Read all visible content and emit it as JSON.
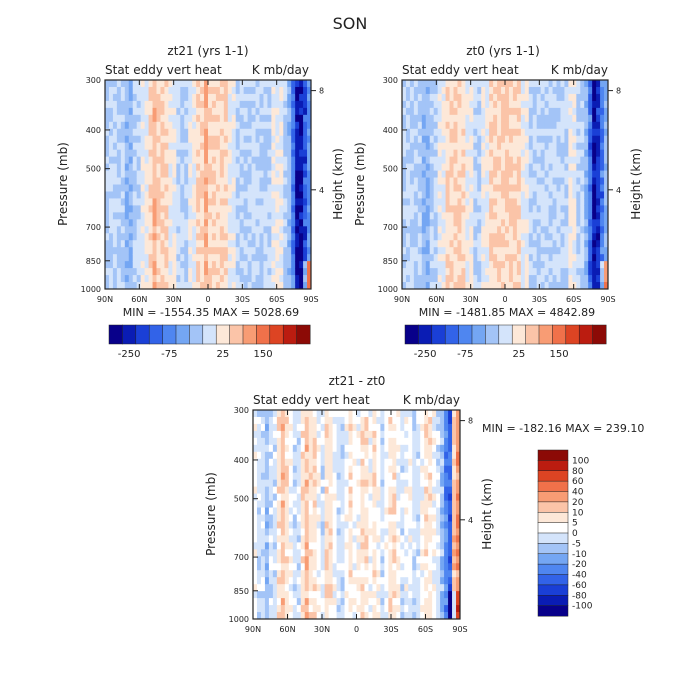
{
  "figure_title": "SON",
  "chart_data": [
    {
      "type": "heatmap",
      "id": "a",
      "title": "zt21 (yrs 1-1)",
      "left_label": "Stat eddy vert heat",
      "right_label": "K mb/day",
      "xlabel": "",
      "ylabel": "Pressure (mb)",
      "y2label": "Height (km)",
      "x_ticks": [
        "90N",
        "60N",
        "30N",
        "0",
        "30S",
        "60S",
        "90S"
      ],
      "y_ticks": [
        300,
        400,
        500,
        700,
        850,
        1000
      ],
      "y2_ticks": [
        8,
        4
      ],
      "ylim": [
        1000,
        300
      ],
      "stats": "MIN = -1554.35   MAX = 5028.69",
      "colorbar_ticks": [
        "-250",
        "-75",
        "25",
        "150"
      ],
      "colors": [
        "#08008a",
        "#0a1cb4",
        "#1a3fd6",
        "#3263e8",
        "#4f86f0",
        "#74a6f3",
        "#a3c4f7",
        "#d4e4fb",
        "#fde8d8",
        "#fbc4a8",
        "#f89c74",
        "#f0714a",
        "#dd4423",
        "#bb1c10",
        "#8c0a06"
      ],
      "profile": [
        -1,
        -1,
        -1,
        -1,
        -1,
        -2,
        -2,
        -1,
        -1,
        0,
        0,
        1,
        2,
        1,
        1,
        1,
        0,
        0,
        -1,
        -1,
        -1,
        0,
        0,
        1,
        1,
        2,
        1,
        1,
        1,
        1,
        1,
        0,
        0,
        -1,
        -1,
        -1,
        -1,
        -1,
        -1,
        -1,
        -1,
        -1,
        0,
        0,
        0,
        -1,
        -2,
        -4,
        -7,
        -7,
        -5,
        -3
      ],
      "surface_signal": [
        0,
        0,
        0,
        0,
        0,
        0,
        0,
        0,
        0,
        0,
        0,
        0,
        0,
        0,
        0,
        0,
        0,
        0,
        0,
        0,
        0,
        0,
        0,
        0,
        0,
        0,
        0,
        0,
        0,
        0,
        0,
        0,
        0,
        0,
        0,
        0,
        0,
        0,
        0,
        0,
        0,
        0,
        0,
        0,
        0,
        0,
        0,
        0,
        0,
        0,
        3,
        6
      ]
    },
    {
      "type": "heatmap",
      "id": "b",
      "title": "zt0 (yrs 1-1)",
      "left_label": "Stat eddy vert heat",
      "right_label": "K mb/day",
      "xlabel": "",
      "ylabel": "Pressure (mb)",
      "y2label": "Height (km)",
      "x_ticks": [
        "90N",
        "60N",
        "30N",
        "0",
        "30S",
        "60S",
        "90S"
      ],
      "y_ticks": [
        300,
        400,
        500,
        700,
        850,
        1000
      ],
      "y2_ticks": [
        8,
        4
      ],
      "ylim": [
        1000,
        300
      ],
      "stats": "MIN = -1481.85   MAX = 4842.89",
      "colorbar_ticks": [
        "-250",
        "-75",
        "25",
        "150"
      ],
      "colors": [
        "#08008a",
        "#0a1cb4",
        "#1a3fd6",
        "#3263e8",
        "#4f86f0",
        "#74a6f3",
        "#a3c4f7",
        "#d4e4fb",
        "#fde8d8",
        "#fbc4a8",
        "#f89c74",
        "#f0714a",
        "#dd4423",
        "#bb1c10",
        "#8c0a06"
      ],
      "profile": [
        -1,
        -1,
        -1,
        -1,
        -1,
        -2,
        -2,
        -1,
        -1,
        0,
        0,
        1,
        1,
        1,
        1,
        1,
        0,
        0,
        -1,
        -1,
        0,
        0,
        1,
        1,
        1,
        1,
        1,
        1,
        1,
        1,
        0,
        0,
        -1,
        -1,
        -1,
        -1,
        -1,
        -1,
        -1,
        -1,
        -1,
        -1,
        0,
        0,
        -1,
        -1,
        -2,
        -4,
        -7,
        -6,
        -4,
        -2
      ],
      "surface_signal": [
        0,
        0,
        0,
        0,
        0,
        0,
        0,
        0,
        0,
        0,
        0,
        0,
        0,
        0,
        0,
        0,
        0,
        0,
        0,
        0,
        0,
        0,
        0,
        0,
        0,
        0,
        0,
        0,
        0,
        0,
        0,
        0,
        0,
        0,
        0,
        0,
        0,
        0,
        0,
        0,
        0,
        0,
        0,
        0,
        0,
        0,
        0,
        0,
        0,
        0,
        3,
        5
      ]
    },
    {
      "type": "heatmap",
      "id": "c",
      "title": "zt21 - zt0",
      "left_label": "Stat eddy vert heat",
      "right_label": "K mb/day",
      "xlabel": "",
      "ylabel": "Pressure (mb)",
      "y2label": "Height (km)",
      "x_ticks": [
        "90N",
        "60N",
        "30N",
        "0",
        "30S",
        "60S",
        "90S"
      ],
      "y_ticks": [
        300,
        400,
        500,
        700,
        850,
        1000
      ],
      "y2_ticks": [
        8,
        4
      ],
      "ylim": [
        1000,
        300
      ],
      "stats": "MIN = -182.16   MAX = 239.10",
      "colorbar_ticks": [
        "100",
        "80",
        "60",
        "40",
        "20",
        "10",
        "5",
        "0",
        "-5",
        "-10",
        "-20",
        "-40",
        "-60",
        "-80",
        "-100"
      ],
      "colors": [
        "#8c0a06",
        "#bb1c10",
        "#dd4423",
        "#f0714a",
        "#f89c74",
        "#fbc4a8",
        "#fde8d8",
        "#ffffff",
        "#d4e4fb",
        "#a3c4f7",
        "#74a6f3",
        "#4f86f0",
        "#3263e8",
        "#1a3fd6",
        "#0a1cb4",
        "#08008a"
      ],
      "profile": [
        0,
        -1,
        -1,
        -2,
        -1,
        -1,
        1,
        2,
        1,
        0,
        -1,
        -1,
        1,
        2,
        1,
        1,
        0,
        -1,
        1,
        1,
        0,
        -1,
        -1,
        0,
        1,
        0,
        0,
        1,
        1,
        0,
        1,
        0,
        -1,
        0,
        1,
        1,
        0,
        -1,
        0,
        0,
        -1,
        -1,
        0,
        1,
        1,
        0,
        -1,
        -2,
        -4,
        -5,
        2,
        3
      ],
      "surface_signal": [
        0,
        0,
        0,
        0,
        0,
        0,
        0,
        0,
        0,
        0,
        0,
        0,
        0,
        0,
        0,
        0,
        0,
        0,
        0,
        0,
        0,
        0,
        0,
        0,
        0,
        0,
        0,
        0,
        0,
        0,
        0,
        0,
        0,
        0,
        0,
        0,
        0,
        0,
        0,
        0,
        0,
        0,
        0,
        0,
        0,
        0,
        0,
        0,
        0,
        -3,
        -3,
        2
      ]
    }
  ]
}
